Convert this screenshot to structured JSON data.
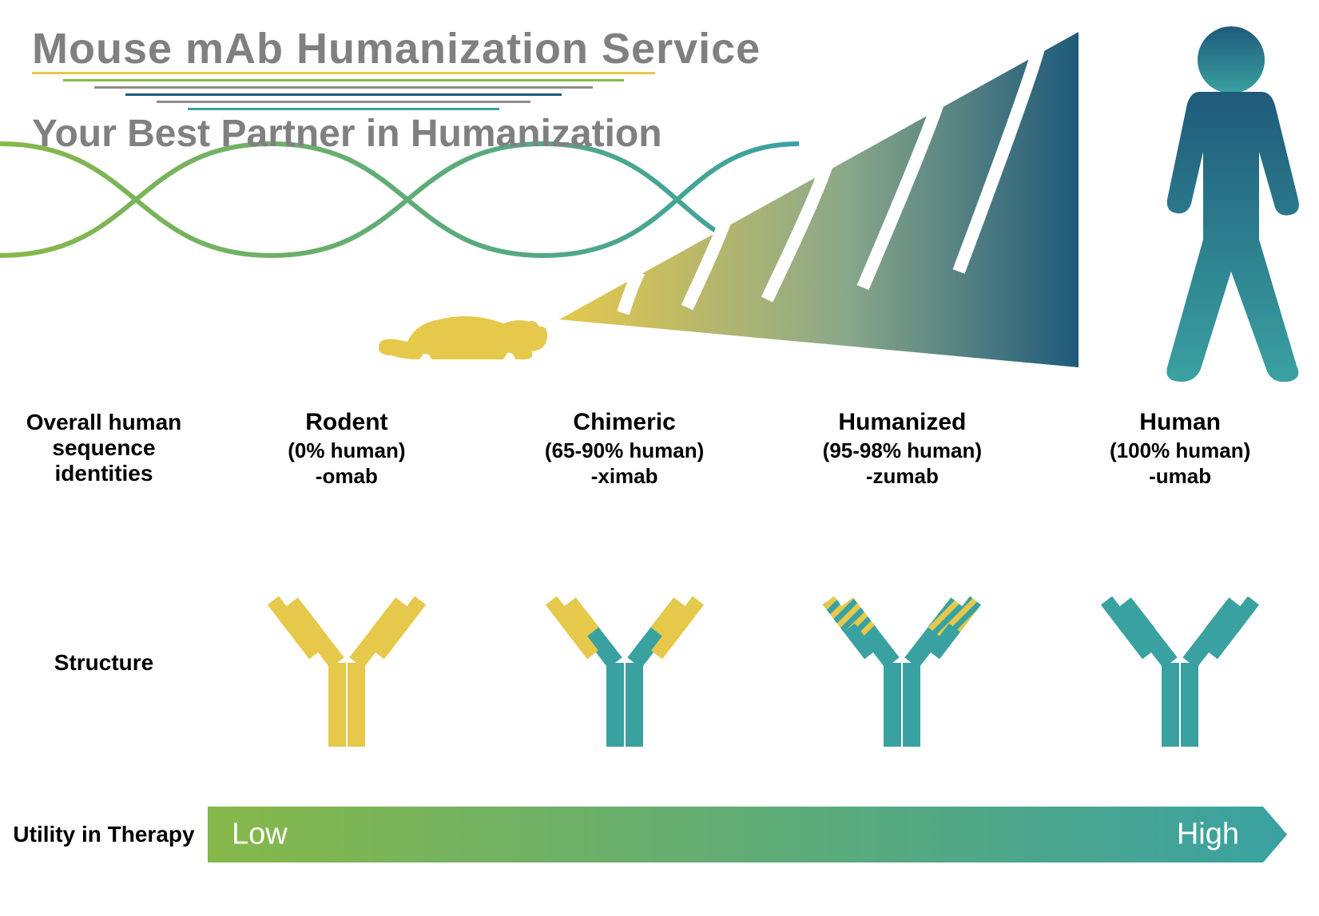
{
  "hero": {
    "title": "Mouse mAb Humanization Service",
    "subtitle": "Your Best Partner in Humanization",
    "decor_line_colors": [
      "#e6c84b",
      "#87b84a",
      "#8e8e8e",
      "#1f5a7a",
      "#8e8e8e",
      "#3aa1a1"
    ]
  },
  "colors": {
    "mouse_yellow": "#e6c84b",
    "human_teal": "#3aa1a1",
    "human_deep": "#1f5a7a",
    "dna_green": "#87b84a",
    "bar_left": "#87b84a",
    "bar_right": "#3aa1a1",
    "grey": "#808080"
  },
  "row_labels": {
    "overall": "Overall human sequence identities",
    "structure": "Structure",
    "utility": "Utility in Therapy"
  },
  "columns": [
    {
      "name": "Rodent",
      "pct": "(0% human)",
      "suffix": "-omab",
      "ab_type": "rodent"
    },
    {
      "name": "Chimeric",
      "pct": "(65-90% human)",
      "suffix": "-ximab",
      "ab_type": "chimeric"
    },
    {
      "name": "Humanized",
      "pct": "(95-98% human)",
      "suffix": "-zumab",
      "ab_type": "humanized"
    },
    {
      "name": "Human",
      "pct": "(100% human)",
      "suffix": "-umab",
      "ab_type": "human"
    }
  ],
  "utility_bar": {
    "low": "Low",
    "high": "High"
  },
  "antibody_style": {
    "stroke_width": 22
  }
}
